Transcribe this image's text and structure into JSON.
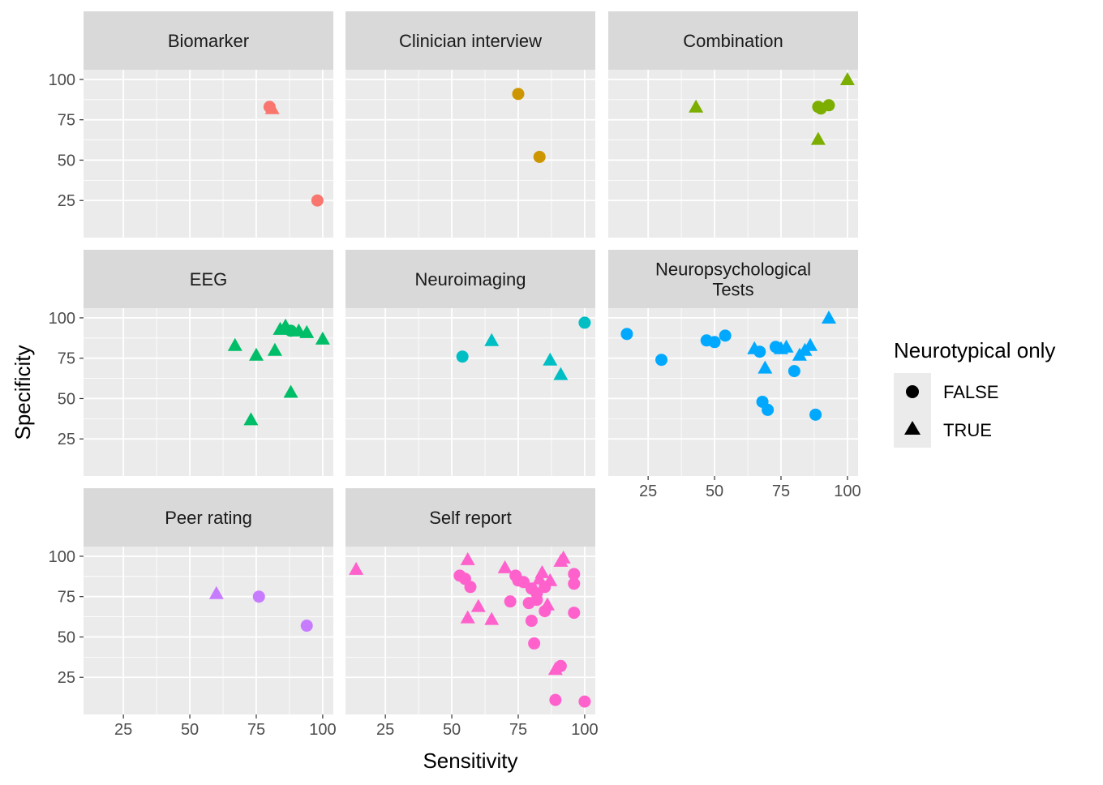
{
  "chart_data": {
    "type": "scatter",
    "xlabel": "Sensitivity",
    "ylabel": "Specificity",
    "xlim": [
      10,
      104
    ],
    "ylim": [
      2,
      106
    ],
    "x_ticks": [
      25,
      50,
      75,
      100
    ],
    "y_ticks": [
      25,
      50,
      75,
      100
    ],
    "grid": true,
    "legend": {
      "title": "Neurotypical only",
      "position": "right",
      "entries": [
        {
          "label": "FALSE",
          "shape": "circle"
        },
        {
          "label": "TRUE",
          "shape": "triangle"
        }
      ]
    },
    "panels": [
      {
        "title": "Biomarker",
        "color": "#F8766D",
        "points": [
          {
            "x": 80,
            "y": 83,
            "neurotypical": false
          },
          {
            "x": 81,
            "y": 82,
            "neurotypical": true
          },
          {
            "x": 98,
            "y": 25,
            "neurotypical": false
          }
        ]
      },
      {
        "title": "Clinician interview",
        "color": "#CD9600",
        "points": [
          {
            "x": 75,
            "y": 91,
            "neurotypical": false
          },
          {
            "x": 83,
            "y": 52,
            "neurotypical": false
          }
        ]
      },
      {
        "title": "Combination",
        "color": "#7CAE00",
        "points": [
          {
            "x": 43,
            "y": 83,
            "neurotypical": true
          },
          {
            "x": 89,
            "y": 83,
            "neurotypical": false
          },
          {
            "x": 90,
            "y": 82,
            "neurotypical": false
          },
          {
            "x": 93,
            "y": 84,
            "neurotypical": false
          },
          {
            "x": 89,
            "y": 63,
            "neurotypical": true
          },
          {
            "x": 100,
            "y": 100,
            "neurotypical": true
          }
        ]
      },
      {
        "title": "EEG",
        "color": "#00BE67",
        "points": [
          {
            "x": 67,
            "y": 83,
            "neurotypical": true
          },
          {
            "x": 75,
            "y": 77,
            "neurotypical": true
          },
          {
            "x": 82,
            "y": 80,
            "neurotypical": true
          },
          {
            "x": 84,
            "y": 93,
            "neurotypical": true
          },
          {
            "x": 86,
            "y": 95,
            "neurotypical": true
          },
          {
            "x": 88,
            "y": 92,
            "neurotypical": false
          },
          {
            "x": 91,
            "y": 92,
            "neurotypical": true
          },
          {
            "x": 94,
            "y": 91,
            "neurotypical": true
          },
          {
            "x": 100,
            "y": 87,
            "neurotypical": true
          },
          {
            "x": 88,
            "y": 54,
            "neurotypical": true
          },
          {
            "x": 73,
            "y": 37,
            "neurotypical": true
          }
        ]
      },
      {
        "title": "Neuroimaging",
        "color": "#00BFC4",
        "points": [
          {
            "x": 54,
            "y": 76,
            "neurotypical": false
          },
          {
            "x": 65,
            "y": 86,
            "neurotypical": true
          },
          {
            "x": 87,
            "y": 74,
            "neurotypical": true
          },
          {
            "x": 91,
            "y": 65,
            "neurotypical": true
          },
          {
            "x": 100,
            "y": 97,
            "neurotypical": false
          }
        ]
      },
      {
        "title": "Neuropsychological\nTests",
        "color": "#00A9FF",
        "points": [
          {
            "x": 17,
            "y": 90,
            "neurotypical": false
          },
          {
            "x": 30,
            "y": 74,
            "neurotypical": false
          },
          {
            "x": 47,
            "y": 86,
            "neurotypical": false
          },
          {
            "x": 50,
            "y": 85,
            "neurotypical": false
          },
          {
            "x": 54,
            "y": 89,
            "neurotypical": false
          },
          {
            "x": 65,
            "y": 81,
            "neurotypical": true
          },
          {
            "x": 67,
            "y": 79,
            "neurotypical": false
          },
          {
            "x": 69,
            "y": 69,
            "neurotypical": true
          },
          {
            "x": 68,
            "y": 48,
            "neurotypical": false
          },
          {
            "x": 70,
            "y": 43,
            "neurotypical": false
          },
          {
            "x": 73,
            "y": 82,
            "neurotypical": false
          },
          {
            "x": 75,
            "y": 81,
            "neurotypical": true
          },
          {
            "x": 77,
            "y": 82,
            "neurotypical": true
          },
          {
            "x": 80,
            "y": 67,
            "neurotypical": false
          },
          {
            "x": 82,
            "y": 77,
            "neurotypical": true
          },
          {
            "x": 84,
            "y": 80,
            "neurotypical": true
          },
          {
            "x": 86,
            "y": 83,
            "neurotypical": true
          },
          {
            "x": 88,
            "y": 40,
            "neurotypical": false
          },
          {
            "x": 93,
            "y": 100,
            "neurotypical": true
          }
        ]
      },
      {
        "title": "Peer rating",
        "color": "#C77CFF",
        "points": [
          {
            "x": 60,
            "y": 77,
            "neurotypical": true
          },
          {
            "x": 76,
            "y": 75,
            "neurotypical": false
          },
          {
            "x": 94,
            "y": 57,
            "neurotypical": false
          }
        ]
      },
      {
        "title": "Self report",
        "color": "#FF61CC",
        "points": [
          {
            "x": 14,
            "y": 92,
            "neurotypical": true
          },
          {
            "x": 53,
            "y": 88,
            "neurotypical": false
          },
          {
            "x": 55,
            "y": 86,
            "neurotypical": false
          },
          {
            "x": 57,
            "y": 81,
            "neurotypical": false
          },
          {
            "x": 56,
            "y": 98,
            "neurotypical": true
          },
          {
            "x": 56,
            "y": 62,
            "neurotypical": true
          },
          {
            "x": 60,
            "y": 69,
            "neurotypical": true
          },
          {
            "x": 65,
            "y": 61,
            "neurotypical": true
          },
          {
            "x": 70,
            "y": 93,
            "neurotypical": true
          },
          {
            "x": 72,
            "y": 72,
            "neurotypical": false
          },
          {
            "x": 74,
            "y": 88,
            "neurotypical": false
          },
          {
            "x": 75,
            "y": 85,
            "neurotypical": false
          },
          {
            "x": 77,
            "y": 84,
            "neurotypical": false
          },
          {
            "x": 79,
            "y": 71,
            "neurotypical": false
          },
          {
            "x": 80,
            "y": 80,
            "neurotypical": false
          },
          {
            "x": 80,
            "y": 60,
            "neurotypical": false
          },
          {
            "x": 81,
            "y": 46,
            "neurotypical": false
          },
          {
            "x": 82,
            "y": 77,
            "neurotypical": false
          },
          {
            "x": 82,
            "y": 73,
            "neurotypical": false
          },
          {
            "x": 83,
            "y": 86,
            "neurotypical": true
          },
          {
            "x": 84,
            "y": 90,
            "neurotypical": true
          },
          {
            "x": 85,
            "y": 81,
            "neurotypical": false
          },
          {
            "x": 85,
            "y": 66,
            "neurotypical": false
          },
          {
            "x": 86,
            "y": 70,
            "neurotypical": true
          },
          {
            "x": 87,
            "y": 85,
            "neurotypical": true
          },
          {
            "x": 89,
            "y": 30,
            "neurotypical": true
          },
          {
            "x": 91,
            "y": 32,
            "neurotypical": false
          },
          {
            "x": 89,
            "y": 11,
            "neurotypical": false
          },
          {
            "x": 91,
            "y": 97,
            "neurotypical": true
          },
          {
            "x": 92,
            "y": 99,
            "neurotypical": true
          },
          {
            "x": 96,
            "y": 89,
            "neurotypical": false
          },
          {
            "x": 96,
            "y": 83,
            "neurotypical": false
          },
          {
            "x": 96,
            "y": 65,
            "neurotypical": false
          },
          {
            "x": 100,
            "y": 10,
            "neurotypical": false
          }
        ]
      }
    ]
  }
}
